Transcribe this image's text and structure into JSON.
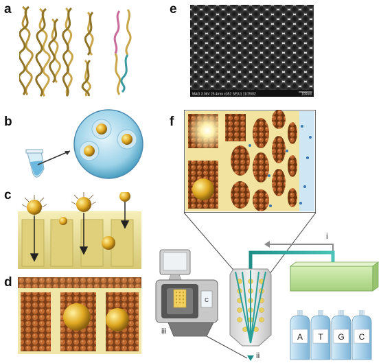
{
  "panels": {
    "a": {
      "label": "a"
    },
    "b": {
      "label": "b"
    },
    "c": {
      "label": "c"
    },
    "d": {
      "label": "d"
    },
    "e": {
      "label": "e",
      "sem_caption": "MAG 3.0kV 25.4mm x352 SE(U) 11/25/02",
      "scale_text": "100nm"
    },
    "f": {
      "label": "f"
    }
  },
  "schematic": {
    "roman_i": "i",
    "roman_ii": "ii",
    "roman_iii": "iii",
    "cartridge_letter": "C",
    "bottles": [
      "A",
      "T",
      "G",
      "C"
    ]
  },
  "colors": {
    "dna_gold": "#c9a64a",
    "dna_pink": "#c86a9a",
    "dna_teal": "#3a9aa0",
    "pore_wall": "#eee4a4",
    "bead_orange": "#b8602a",
    "gold_particle": "#e8b020",
    "tubing": "#33a8a0",
    "manifold": "#bfe09a",
    "bottle_blue": "#a8d0ea"
  }
}
